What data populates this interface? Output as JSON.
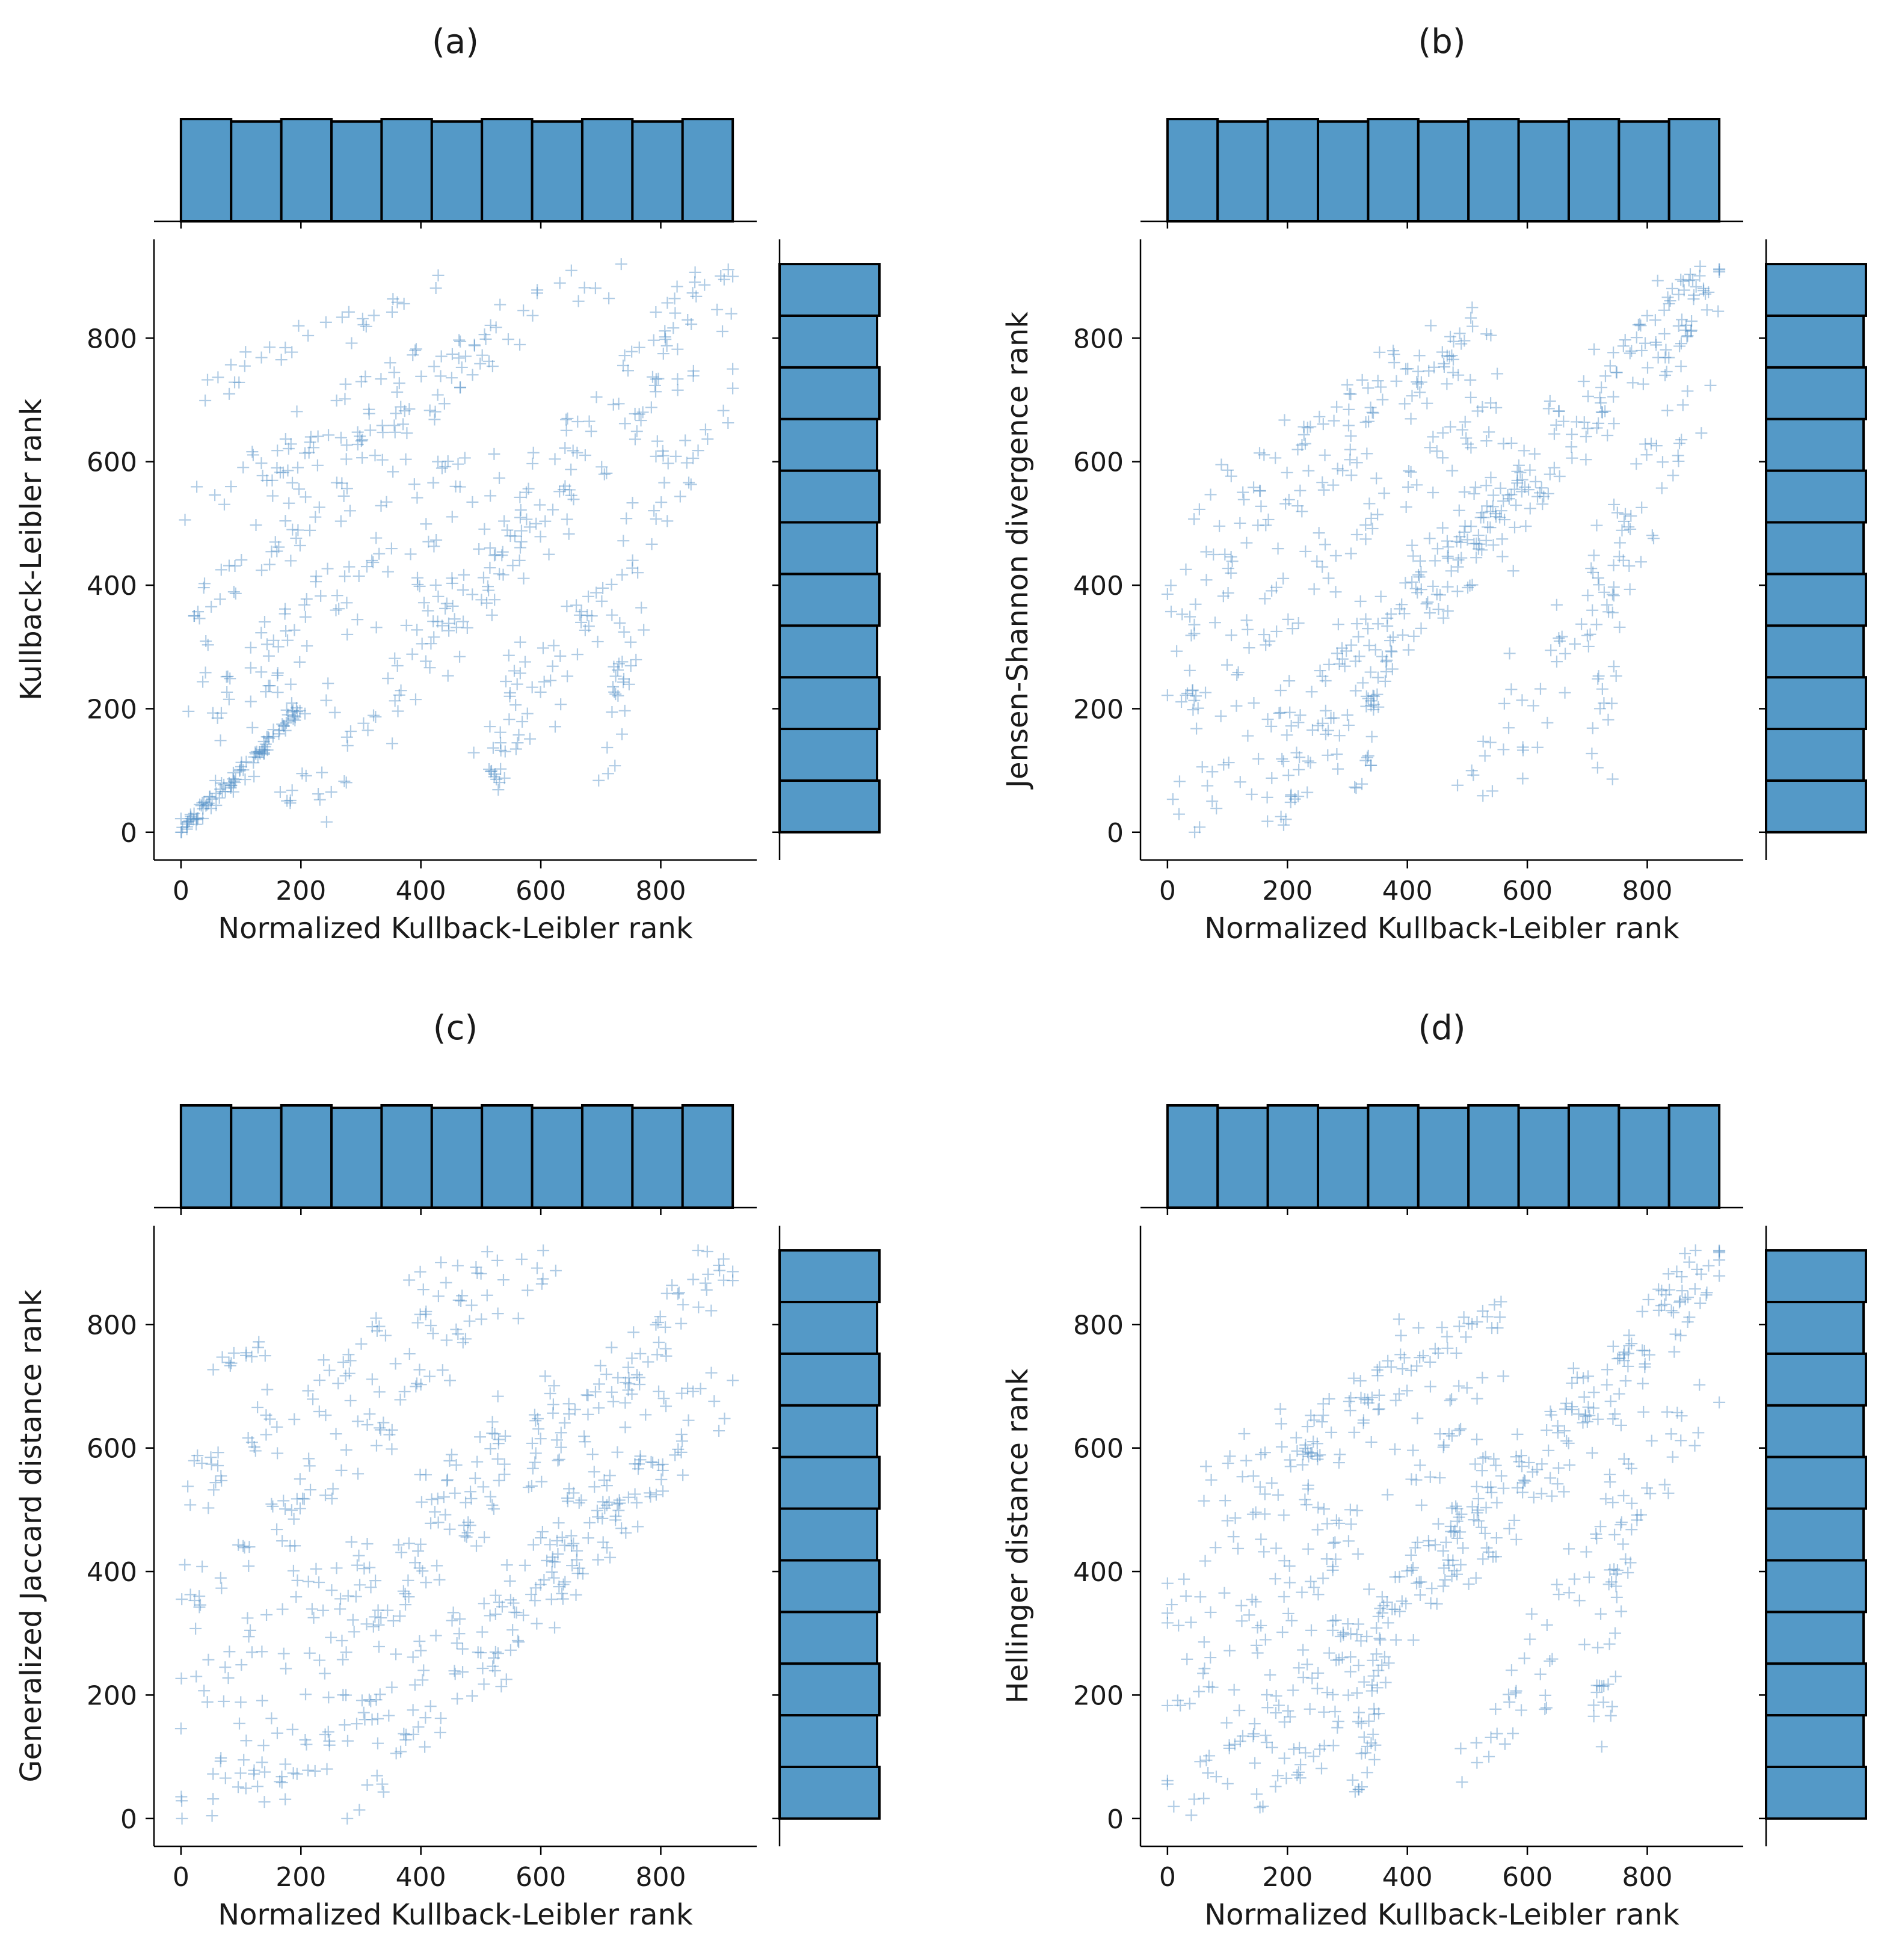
{
  "chart_data": [
    {
      "type": "scatter",
      "panel": "(a)",
      "title": "(a)",
      "xlabel": "Normalized Kullback-Leibler rank",
      "ylabel": "Kullback-Leibler rank",
      "xlim": [
        -45,
        960
      ],
      "ylim": [
        -45,
        960
      ],
      "xticks": [
        0,
        200,
        400,
        600,
        800
      ],
      "yticks": [
        0,
        200,
        400,
        600,
        800
      ],
      "marker": "+",
      "color": "#5499c7",
      "marginal_x_histogram": {
        "bins": 11,
        "range": [
          0,
          920
        ],
        "counts": [
          84,
          82,
          84,
          82,
          84,
          82,
          84,
          82,
          84,
          82,
          84
        ]
      },
      "marginal_y_histogram": {
        "bins": 11,
        "range": [
          0,
          920
        ],
        "counts": [
          84,
          82,
          84,
          82,
          84,
          82,
          84,
          82,
          84,
          82,
          84
        ]
      },
      "pattern": [
        {
          "x0": 0,
          "x1": 200,
          "y0": 0,
          "y1": 200,
          "n": 90,
          "jitter": 8
        },
        {
          "x0": 0,
          "x1": 920,
          "y0": 0,
          "y1": 920,
          "n": 55,
          "jitter": 35
        },
        {
          "x0": 30,
          "x1": 500,
          "y0": 170,
          "y1": 620,
          "n": 75,
          "jitter": 45
        },
        {
          "x0": 20,
          "x1": 500,
          "y0": 330,
          "y1": 780,
          "n": 75,
          "jitter": 45
        },
        {
          "x0": 20,
          "x1": 700,
          "y0": 530,
          "y1": 900,
          "n": 80,
          "jitter": 45
        },
        {
          "x0": 50,
          "x1": 450,
          "y0": 720,
          "y1": 900,
          "n": 30,
          "jitter": 30
        },
        {
          "x0": 200,
          "x1": 600,
          "y0": 40,
          "y1": 520,
          "n": 70,
          "jitter": 45
        },
        {
          "x0": 450,
          "x1": 920,
          "y0": 330,
          "y1": 900,
          "n": 80,
          "jitter": 45
        },
        {
          "x0": 520,
          "x1": 920,
          "y0": 120,
          "y1": 730,
          "n": 70,
          "jitter": 45
        },
        {
          "x0": 520,
          "x1": 560,
          "y0": 60,
          "y1": 300,
          "n": 25,
          "jitter": 15
        },
        {
          "x0": 700,
          "x1": 760,
          "y0": 70,
          "y1": 350,
          "n": 25,
          "jitter": 20
        }
      ]
    },
    {
      "type": "scatter",
      "panel": "(b)",
      "title": "(b)",
      "xlabel": "Normalized Kullback-Leibler rank",
      "ylabel": "Jensen-Shannon divergence rank",
      "xlim": [
        -45,
        960
      ],
      "ylim": [
        -45,
        960
      ],
      "xticks": [
        0,
        200,
        400,
        600,
        800
      ],
      "yticks": [
        0,
        200,
        400,
        600,
        800
      ],
      "marker": "+",
      "color": "#5499c7",
      "marginal_x_histogram": {
        "bins": 11,
        "range": [
          0,
          920
        ],
        "counts": [
          84,
          82,
          84,
          82,
          84,
          82,
          84,
          82,
          84,
          82,
          84
        ]
      },
      "marginal_y_histogram": {
        "bins": 11,
        "range": [
          0,
          920
        ],
        "counts": [
          84,
          82,
          84,
          82,
          84,
          82,
          84,
          82,
          84,
          82,
          84
        ]
      },
      "pattern": [
        {
          "x0": 0,
          "x1": 920,
          "y0": 0,
          "y1": 920,
          "n": 140,
          "jitter": 40
        },
        {
          "x0": 0,
          "x1": 550,
          "y0": 170,
          "y1": 700,
          "n": 80,
          "jitter": 45
        },
        {
          "x0": 0,
          "x1": 450,
          "y0": 330,
          "y1": 800,
          "n": 70,
          "jitter": 45
        },
        {
          "x0": 50,
          "x1": 550,
          "y0": 530,
          "y1": 820,
          "n": 60,
          "jitter": 40
        },
        {
          "x0": 150,
          "x1": 550,
          "y0": 0,
          "y1": 550,
          "n": 80,
          "jitter": 45
        },
        {
          "x0": 450,
          "x1": 920,
          "y0": 350,
          "y1": 920,
          "n": 90,
          "jitter": 45
        },
        {
          "x0": 520,
          "x1": 900,
          "y0": 80,
          "y1": 720,
          "n": 70,
          "jitter": 50
        },
        {
          "x0": 320,
          "x1": 360,
          "y0": 60,
          "y1": 300,
          "n": 25,
          "jitter": 15
        },
        {
          "x0": 720,
          "x1": 760,
          "y0": 80,
          "y1": 520,
          "n": 30,
          "jitter": 20
        }
      ]
    },
    {
      "type": "scatter",
      "panel": "(c)",
      "title": "(c)",
      "xlabel": "Normalized Kullback-Leibler rank",
      "ylabel": "Generalized Jaccard distance rank",
      "xlim": [
        -45,
        960
      ],
      "ylim": [
        -45,
        960
      ],
      "xticks": [
        0,
        200,
        400,
        600,
        800
      ],
      "yticks": [
        0,
        200,
        400,
        600,
        800
      ],
      "marker": "+",
      "color": "#5499c7",
      "marginal_x_histogram": {
        "bins": 11,
        "range": [
          0,
          920
        ],
        "counts": [
          84,
          82,
          84,
          82,
          84,
          82,
          84,
          82,
          84,
          82,
          84
        ]
      },
      "marginal_y_histogram": {
        "bins": 11,
        "range": [
          0,
          920
        ],
        "counts": [
          84,
          82,
          84,
          82,
          84,
          82,
          84,
          82,
          84,
          82,
          84
        ]
      },
      "pattern": [
        {
          "x0": 0,
          "x1": 920,
          "y0": 0,
          "y1": 920,
          "n": 130,
          "jitter": 40
        },
        {
          "x0": 0,
          "x1": 650,
          "y0": 170,
          "y1": 720,
          "n": 80,
          "jitter": 45
        },
        {
          "x0": 0,
          "x1": 600,
          "y0": 330,
          "y1": 900,
          "n": 80,
          "jitter": 45
        },
        {
          "x0": 0,
          "x1": 500,
          "y0": 530,
          "y1": 900,
          "n": 70,
          "jitter": 45
        },
        {
          "x0": 100,
          "x1": 800,
          "y0": 0,
          "y1": 560,
          "n": 90,
          "jitter": 45
        },
        {
          "x0": 300,
          "x1": 920,
          "y0": 0,
          "y1": 720,
          "n": 80,
          "jitter": 45
        },
        {
          "x0": 500,
          "x1": 920,
          "y0": 250,
          "y1": 920,
          "n": 70,
          "jitter": 45
        },
        {
          "x0": 50,
          "x1": 150,
          "y0": 730,
          "y1": 760,
          "n": 12,
          "jitter": 15
        }
      ]
    },
    {
      "type": "scatter",
      "panel": "(d)",
      "title": "(d)",
      "xlabel": "Normalized Kullback-Leibler rank",
      "ylabel": "Hellinger distance rank",
      "xlim": [
        -45,
        960
      ],
      "ylim": [
        -45,
        960
      ],
      "xticks": [
        0,
        200,
        400,
        600,
        800
      ],
      "yticks": [
        0,
        200,
        400,
        600,
        800
      ],
      "marker": "+",
      "color": "#5499c7",
      "marginal_x_histogram": {
        "bins": 11,
        "range": [
          0,
          920
        ],
        "counts": [
          84,
          82,
          84,
          82,
          84,
          82,
          84,
          82,
          84,
          82,
          84
        ]
      },
      "marginal_y_histogram": {
        "bins": 11,
        "range": [
          0,
          920
        ],
        "counts": [
          84,
          82,
          84,
          82,
          84,
          82,
          84,
          82,
          84,
          82,
          84
        ]
      },
      "pattern": [
        {
          "x0": 0,
          "x1": 920,
          "y0": 0,
          "y1": 920,
          "n": 140,
          "jitter": 40
        },
        {
          "x0": 0,
          "x1": 550,
          "y0": 170,
          "y1": 720,
          "n": 80,
          "jitter": 45
        },
        {
          "x0": 0,
          "x1": 450,
          "y0": 330,
          "y1": 800,
          "n": 70,
          "jitter": 45
        },
        {
          "x0": 50,
          "x1": 550,
          "y0": 530,
          "y1": 820,
          "n": 60,
          "jitter": 40
        },
        {
          "x0": 150,
          "x1": 550,
          "y0": 0,
          "y1": 550,
          "n": 80,
          "jitter": 45
        },
        {
          "x0": 450,
          "x1": 920,
          "y0": 350,
          "y1": 920,
          "n": 90,
          "jitter": 45
        },
        {
          "x0": 520,
          "x1": 900,
          "y0": 80,
          "y1": 720,
          "n": 70,
          "jitter": 50
        },
        {
          "x0": 320,
          "x1": 360,
          "y0": 40,
          "y1": 300,
          "n": 25,
          "jitter": 15
        },
        {
          "x0": 720,
          "x1": 760,
          "y0": 120,
          "y1": 520,
          "n": 30,
          "jitter": 20
        }
      ]
    }
  ]
}
